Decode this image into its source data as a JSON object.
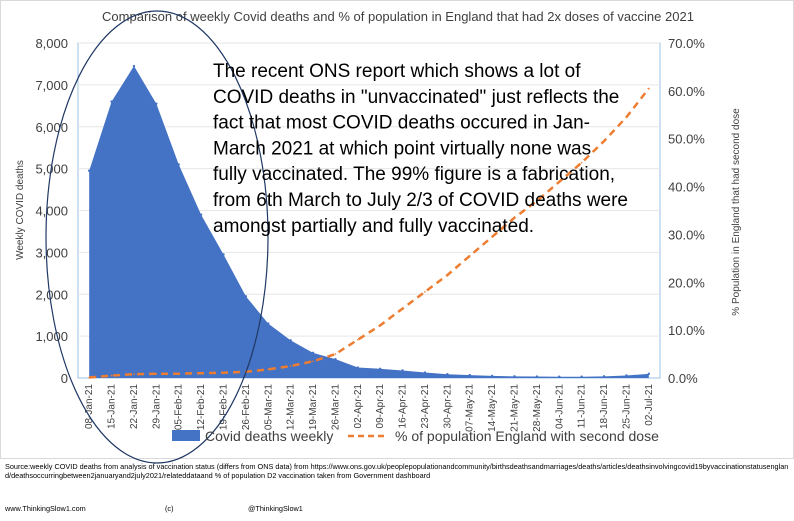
{
  "chart_data": {
    "type": "area+line",
    "title": "Comparison of weekly Covid deaths and % of population in England that had 2x doses of vaccine 2021",
    "categories": [
      "08-Jan-21",
      "15-Jan-21",
      "22-Jan-21",
      "29-Jan-21",
      "05-Feb-21",
      "12-Feb-21",
      "19-Feb-21",
      "26-Feb-21",
      "05-Mar-21",
      "12-Mar-21",
      "19-Mar-21",
      "26-Mar-21",
      "02-Apr-21",
      "09-Apr-21",
      "16-Apr-21",
      "23-Apr-21",
      "30-Apr-21",
      "07-May-21",
      "14-May-21",
      "21-May-21",
      "28-May-21",
      "04-Jun-21",
      "11-Jun-21",
      "18-Jun-21",
      "25-Jun-21",
      "02-Jul-21"
    ],
    "series": [
      {
        "name": "Covid deaths weekly",
        "axis": "left",
        "kind": "area",
        "color": "#4472C4",
        "values": [
          4950,
          6600,
          7450,
          6550,
          5100,
          3900,
          2950,
          1950,
          1300,
          900,
          600,
          450,
          250,
          220,
          180,
          130,
          90,
          70,
          50,
          40,
          35,
          30,
          30,
          40,
          60,
          100
        ]
      },
      {
        "name": "% of population England with second dose",
        "axis": "right",
        "kind": "line-dashed",
        "color": "#ED7D31",
        "values": [
          0.1,
          0.5,
          0.8,
          0.9,
          0.9,
          1.0,
          1.1,
          1.3,
          1.8,
          2.5,
          3.5,
          5.0,
          8.0,
          11.0,
          14.5,
          18.0,
          21.5,
          25.5,
          29.5,
          33.5,
          37.0,
          41.0,
          45.0,
          49.5,
          54.5,
          60.5
        ]
      }
    ],
    "ylabel": "Weekly COVID deaths",
    "y2label": "% Population in England that had second dose",
    "ylim": [
      0,
      8000
    ],
    "y2lim": [
      0,
      70
    ],
    "yticks": [
      "0",
      "1,000",
      "2,000",
      "3,000",
      "4,000",
      "5,000",
      "6,000",
      "7,000",
      "8,000"
    ],
    "y2ticks": [
      "0.0%",
      "10.0%",
      "20.0%",
      "30.0%",
      "40.0%",
      "50.0%",
      "60.0%",
      "70.0%"
    ],
    "legend_position": "bottom",
    "annotation_lines": [
      "The recent ONS report which shows a lot of",
      "COVID deaths in \"unvaccinated\" just reflects the",
      "fact that most COVID deaths occured in Jan-",
      "March 2021 at which point virtually none was",
      "fully vaccinated.  The 99% figure is a fabrication,",
      "from 6th March to July 2/3 of COVID deaths were",
      "amongst partially and fully vaccinated."
    ]
  },
  "source_text": "Source:weekly COVID deaths from analysis of vaccination status (differs from ONS data) from https://www.ons.gov.uk/peoplepopulationandcommunity/birthsdeathsandmarriages/deaths/articles/deathsinvolvingcovid19byvaccinationstatusengland/deathsoccurringbetween2januaryand2july2021/relateddataand % of population D2 vaccination taken from Government dashboard",
  "footer": {
    "website": "www.ThinkingSlow1.com",
    "copyright": "(c)",
    "handle": "@ThinkingSlow1"
  }
}
